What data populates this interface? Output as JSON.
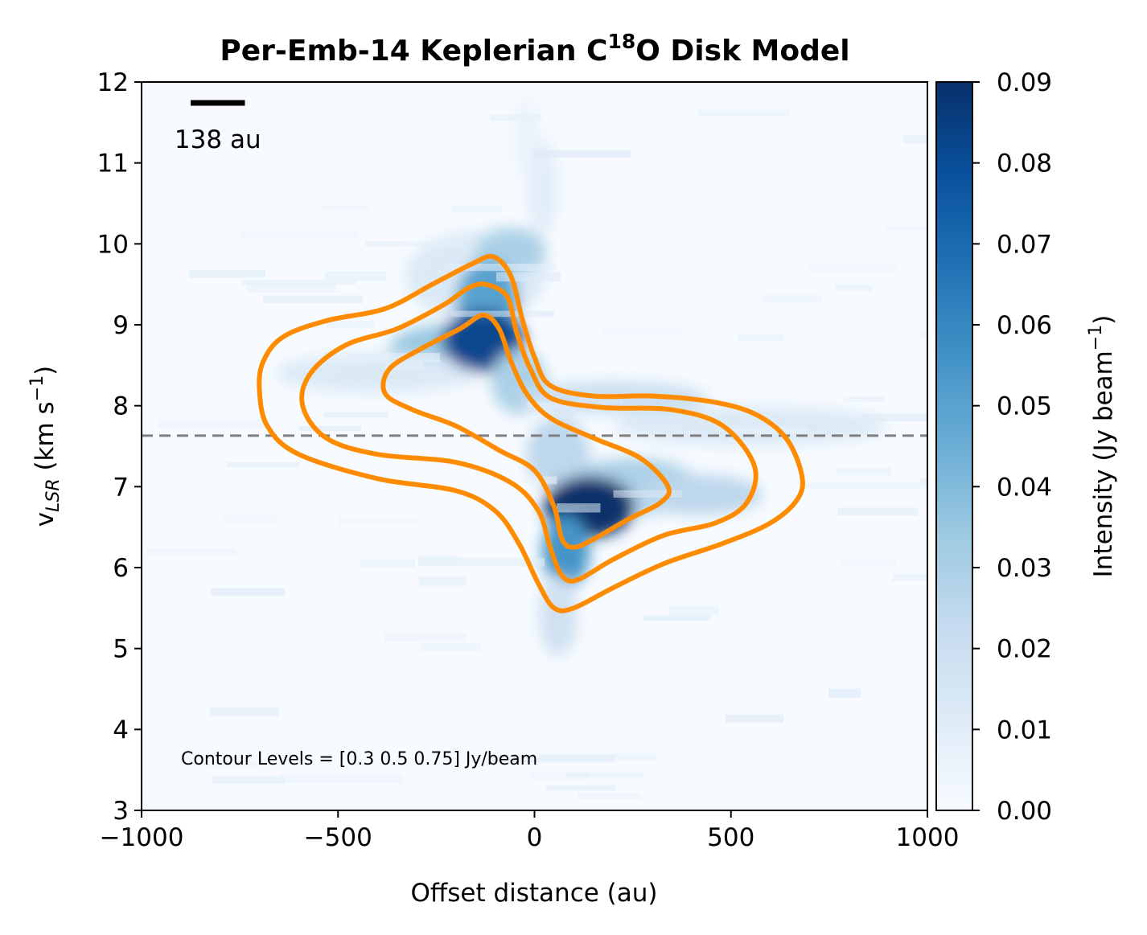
{
  "chart_data": {
    "type": "heatmap",
    "title": "Per-Emb-14 Keplerian C¹⁸O Disk Model",
    "title_parts": {
      "pre": "Per-Emb-14 Keplerian C",
      "sup": "18",
      "post": "O Disk Model"
    },
    "xlabel": "Offset distance (au)",
    "ylabel_parts": {
      "v": "v",
      "sub": "LSR",
      "unit_pre": " (km s",
      "sup": "−1",
      "unit_post": ")"
    },
    "xlim": [
      -1000,
      1000
    ],
    "ylim": [
      3,
      12
    ],
    "x_ticks": [
      -1000,
      -500,
      0,
      500,
      1000
    ],
    "x_tick_labels": [
      "−1000",
      "−500",
      "0",
      "500",
      "1000"
    ],
    "y_ticks": [
      3,
      4,
      5,
      6,
      7,
      8,
      9,
      10,
      11,
      12
    ],
    "y_tick_labels": [
      "3",
      "4",
      "5",
      "6",
      "7",
      "8",
      "9",
      "10",
      "11",
      "12"
    ],
    "colorbar": {
      "label_parts": {
        "pre": "Intensity (Jy beam",
        "sup": "−1",
        "post": ")"
      },
      "range": [
        0,
        0.09
      ],
      "ticks": [
        0,
        0.01,
        0.02,
        0.03,
        0.04,
        0.05,
        0.06,
        0.07,
        0.08,
        0.09
      ],
      "tick_labels": [
        "0.00",
        "0.01",
        "0.02",
        "0.03",
        "0.04",
        "0.05",
        "0.06",
        "0.07",
        "0.08",
        "0.09"
      ],
      "colormap": "Blues",
      "color_low": "#f7fbff",
      "color_high": "#08306b"
    },
    "systemic_velocity_line": {
      "y": 7.63,
      "color": "#808080",
      "style": "dashed"
    },
    "scale_bar": {
      "length_au": 138,
      "label": "138 au",
      "x_start": -875
    },
    "annotation": "Contour Levels = [0.3  0.5  0.75] Jy/beam",
    "contour_color": "#ff8c00",
    "contour_levels": [
      0.3,
      0.5,
      0.75
    ],
    "contours": [
      {
        "level": 0.3,
        "points": [
          [
            -105,
            9.84
          ],
          [
            -60,
            9.6
          ],
          [
            -30,
            9.05
          ],
          [
            0,
            8.6
          ],
          [
            40,
            8.25
          ],
          [
            150,
            8.12
          ],
          [
            300,
            8.12
          ],
          [
            450,
            8.05
          ],
          [
            560,
            7.9
          ],
          [
            640,
            7.6
          ],
          [
            680,
            7.15
          ],
          [
            670,
            6.85
          ],
          [
            600,
            6.55
          ],
          [
            480,
            6.3
          ],
          [
            330,
            6.05
          ],
          [
            200,
            5.75
          ],
          [
            100,
            5.5
          ],
          [
            50,
            5.5
          ],
          [
            10,
            5.8
          ],
          [
            -40,
            6.3
          ],
          [
            -100,
            6.7
          ],
          [
            -200,
            6.95
          ],
          [
            -400,
            7.1
          ],
          [
            -600,
            7.4
          ],
          [
            -680,
            7.75
          ],
          [
            -700,
            8.2
          ],
          [
            -690,
            8.55
          ],
          [
            -640,
            8.85
          ],
          [
            -530,
            9.05
          ],
          [
            -380,
            9.2
          ],
          [
            -260,
            9.5
          ],
          [
            -160,
            9.75
          ]
        ]
      },
      {
        "level": 0.5,
        "points": [
          [
            -125,
            9.5
          ],
          [
            -70,
            9.35
          ],
          [
            -45,
            8.9
          ],
          [
            -10,
            8.45
          ],
          [
            40,
            8.1
          ],
          [
            170,
            7.98
          ],
          [
            350,
            7.95
          ],
          [
            480,
            7.75
          ],
          [
            560,
            7.25
          ],
          [
            540,
            6.8
          ],
          [
            460,
            6.55
          ],
          [
            330,
            6.4
          ],
          [
            200,
            6.1
          ],
          [
            110,
            5.85
          ],
          [
            70,
            5.9
          ],
          [
            40,
            6.25
          ],
          [
            10,
            6.7
          ],
          [
            -60,
            7.05
          ],
          [
            -200,
            7.3
          ],
          [
            -400,
            7.4
          ],
          [
            -530,
            7.6
          ],
          [
            -590,
            8.0
          ],
          [
            -570,
            8.4
          ],
          [
            -480,
            8.75
          ],
          [
            -350,
            8.95
          ],
          [
            -230,
            9.25
          ],
          [
            -170,
            9.45
          ]
        ]
      },
      {
        "level": 0.75,
        "points": [
          [
            -130,
            9.12
          ],
          [
            -90,
            8.95
          ],
          [
            -60,
            8.55
          ],
          [
            -20,
            8.15
          ],
          [
            40,
            7.85
          ],
          [
            150,
            7.6
          ],
          [
            270,
            7.35
          ],
          [
            340,
            7.0
          ],
          [
            320,
            6.8
          ],
          [
            240,
            6.6
          ],
          [
            150,
            6.35
          ],
          [
            100,
            6.25
          ],
          [
            70,
            6.35
          ],
          [
            50,
            6.75
          ],
          [
            0,
            7.2
          ],
          [
            -90,
            7.45
          ],
          [
            -200,
            7.75
          ],
          [
            -310,
            7.95
          ],
          [
            -380,
            8.15
          ],
          [
            -370,
            8.45
          ],
          [
            -290,
            8.7
          ],
          [
            -190,
            8.95
          ]
        ]
      }
    ],
    "emission_peaks": [
      {
        "x": -130,
        "y": 8.8,
        "value": 0.085
      },
      {
        "x": 160,
        "y": 6.75,
        "value": 0.09
      }
    ]
  }
}
